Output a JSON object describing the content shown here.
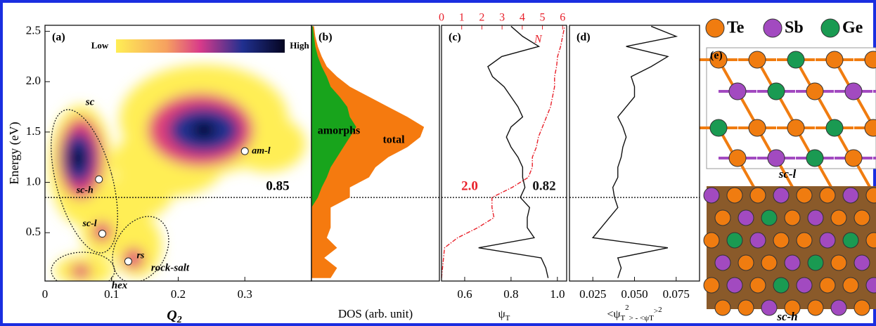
{
  "y_label": "Energy (eV)",
  "chart_data": [
    {
      "type": "scatter",
      "panel_label": "(a)",
      "x_label": "Q",
      "x_label_sub": "2",
      "xlim": [
        0,
        0.4
      ],
      "xticks": [
        0,
        0.1,
        0.2,
        0.3
      ],
      "ylim": [
        0.02,
        2.56
      ],
      "yticks": [
        0.5,
        {
          "value": 1,
          "label": "1.0"
        },
        1.5,
        {
          "value": 2,
          "label": "2.0"
        },
        2.5
      ],
      "colorbar": {
        "low": "Low",
        "high": "High"
      },
      "threshold": 0.85,
      "points": {
        "names": [
          "sc-h",
          "sc-l",
          "rs",
          "am-l"
        ],
        "x": [
          0.081,
          0.086,
          0.125,
          0.3
        ],
        "y": [
          1.03,
          0.49,
          0.215,
          1.31
        ]
      },
      "regions": [
        "sc",
        "hex",
        "rock-salt"
      ]
    },
    {
      "type": "area",
      "panel_label": "(b)",
      "x_label": "DOS (arb. unit)",
      "xlim": [
        0,
        1
      ],
      "energy": [
        0.05,
        0.15,
        0.25,
        0.35,
        0.45,
        0.55,
        0.65,
        0.75,
        0.85,
        0.95,
        1.05,
        1.15,
        1.25,
        1.35,
        1.45,
        1.55,
        1.65,
        1.75,
        1.85,
        1.95,
        2.05,
        2.15,
        2.25,
        2.35,
        2.45,
        2.55
      ],
      "series": [
        {
          "name": "total",
          "color": "#f57a0f",
          "values": [
            0.15,
            0.2,
            0.1,
            0.2,
            0.12,
            0.15,
            0.15,
            0.15,
            0.3,
            0.3,
            0.45,
            0.5,
            0.6,
            0.75,
            0.85,
            0.88,
            0.75,
            0.6,
            0.45,
            0.3,
            0.2,
            0.12,
            0.08,
            0.05,
            0.03,
            0.02
          ]
        },
        {
          "name": "amorphs",
          "color": "#18a41c",
          "values": [
            0,
            0,
            0,
            0,
            0,
            0,
            0,
            0,
            0.05,
            0.08,
            0.12,
            0.15,
            0.2,
            0.25,
            0.3,
            0.35,
            0.3,
            0.28,
            0.22,
            0.15,
            0.12,
            0.08,
            0.05,
            0.03,
            0.02,
            0.01
          ]
        }
      ]
    },
    {
      "type": "line",
      "panel_label": "(c)",
      "x_label": "ψ",
      "x_label_sub": "T",
      "xlim": [
        0.5,
        1.04
      ],
      "xticks": [
        0.6,
        0.8,
        {
          "value": 1,
          "label": "1.0"
        }
      ],
      "x2_label": "N",
      "x2lim": [
        0,
        6.2
      ],
      "x2ticks": [
        0,
        1,
        2,
        3,
        4,
        5,
        6
      ],
      "energy": [
        0.05,
        0.15,
        0.25,
        0.35,
        0.45,
        0.55,
        0.65,
        0.75,
        0.85,
        0.95,
        1.05,
        1.15,
        1.25,
        1.35,
        1.45,
        1.55,
        1.65,
        1.75,
        1.85,
        1.95,
        2.05,
        2.15,
        2.25,
        2.35,
        2.45,
        2.55
      ],
      "series": [
        {
          "color": "#111111",
          "values": [
            0.96,
            0.95,
            0.93,
            0.66,
            0.9,
            0.87,
            0.87,
            0.88,
            0.84,
            0.86,
            0.85,
            0.85,
            0.83,
            0.8,
            0.78,
            0.8,
            0.85,
            0.83,
            0.8,
            0.77,
            0.72,
            0.7,
            0.76,
            0.92,
            0.85,
            0.8
          ]
        },
        {
          "color": "#e8202a",
          "axis": "x2",
          "values": [
            0,
            0.05,
            0.1,
            0.15,
            0.8,
            1.8,
            2.6,
            2.5,
            2.5,
            3.5,
            4.3,
            4.5,
            4.5,
            4.7,
            4.8,
            5.0,
            5.2,
            5.4,
            5.5,
            5.6,
            5.6,
            5.7,
            5.75,
            5.9,
            6.0,
            6.1
          ]
        }
      ],
      "annotations": [
        {
          "text": "2.0",
          "color": "#e8202a"
        },
        {
          "text": "0.82",
          "color": "#111111"
        }
      ]
    },
    {
      "type": "line",
      "panel_label": "(d)",
      "x_label": [
        "<ψ",
        "T",
        "2",
        "> - <ψ",
        "T",
        ">",
        "2"
      ],
      "xlim": [
        0.011,
        0.089
      ],
      "xticks": [
        0.025,
        {
          "value": 0.05,
          "label": "0.050"
        },
        0.075
      ],
      "energy": [
        0.05,
        0.15,
        0.25,
        0.35,
        0.45,
        0.55,
        0.65,
        0.75,
        0.85,
        0.95,
        1.05,
        1.15,
        1.25,
        1.35,
        1.45,
        1.55,
        1.65,
        1.75,
        1.85,
        1.95,
        2.05,
        2.15,
        2.25,
        2.35,
        2.45,
        2.55
      ],
      "series": [
        {
          "color": "#111111",
          "values": [
            0.04,
            0.042,
            0.04,
            0.07,
            0.025,
            0.03,
            0.035,
            0.04,
            0.038,
            0.037,
            0.04,
            0.04,
            0.042,
            0.043,
            0.045,
            0.043,
            0.04,
            0.045,
            0.05,
            0.05,
            0.048,
            0.06,
            0.07,
            0.045,
            0.075,
            0.06
          ]
        }
      ]
    }
  ],
  "structure": {
    "panel_label": "(e)",
    "legend": [
      {
        "name": "Te",
        "color": "#f07c10"
      },
      {
        "name": "Sb",
        "color": "#a24ac0"
      },
      {
        "name": "Ge",
        "color": "#1a9a52"
      }
    ],
    "views": [
      "sc-l",
      "sc-h"
    ]
  }
}
